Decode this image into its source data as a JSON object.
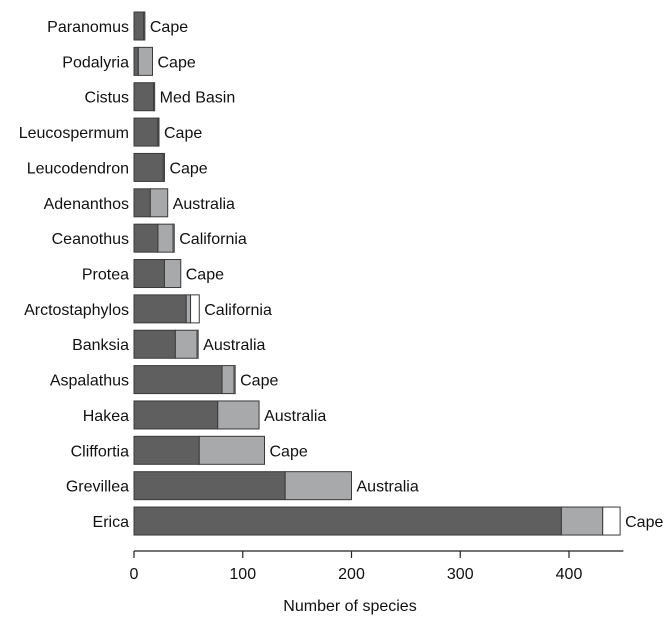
{
  "chart_data": {
    "type": "bar",
    "orientation": "horizontal",
    "stacked": true,
    "title": "",
    "xlabel": "Number of species",
    "ylabel": "",
    "xlim": [
      0,
      450
    ],
    "xticks": [
      0,
      100,
      200,
      300,
      400
    ],
    "grid": false,
    "legend": "none",
    "categories": [
      "Paranomus",
      "Podalyria",
      "Cistus",
      "Leucospermum",
      "Leucodendron",
      "Adenanthos",
      "Ceanothus",
      "Protea",
      "Arctostaphylos",
      "Banksia",
      "Aspalathus",
      "Hakea",
      "Cliffortia",
      "Grevillea",
      "Erica"
    ],
    "regions": [
      "Cape",
      "Cape",
      "Med Basin",
      "Cape",
      "Cape",
      "Australia",
      "California",
      "Cape",
      "California",
      "Australia",
      "Cape",
      "Australia",
      "Cape",
      "Australia",
      "Cape"
    ],
    "series": [
      {
        "values": [
          9,
          4,
          18,
          22,
          27,
          15,
          22,
          28,
          48,
          38,
          81,
          77,
          60,
          139,
          393
        ],
        "color": "#5f5f5f"
      },
      {
        "values": [
          1,
          13,
          1,
          1,
          1,
          16,
          14,
          15,
          4,
          20,
          11,
          38,
          60,
          61,
          38
        ],
        "color": "#a7a9ab"
      },
      {
        "values": [
          0,
          0,
          0,
          0,
          0,
          0,
          1,
          0,
          8,
          1,
          1,
          0,
          0,
          0,
          16
        ],
        "color": "#ffffff"
      }
    ]
  }
}
